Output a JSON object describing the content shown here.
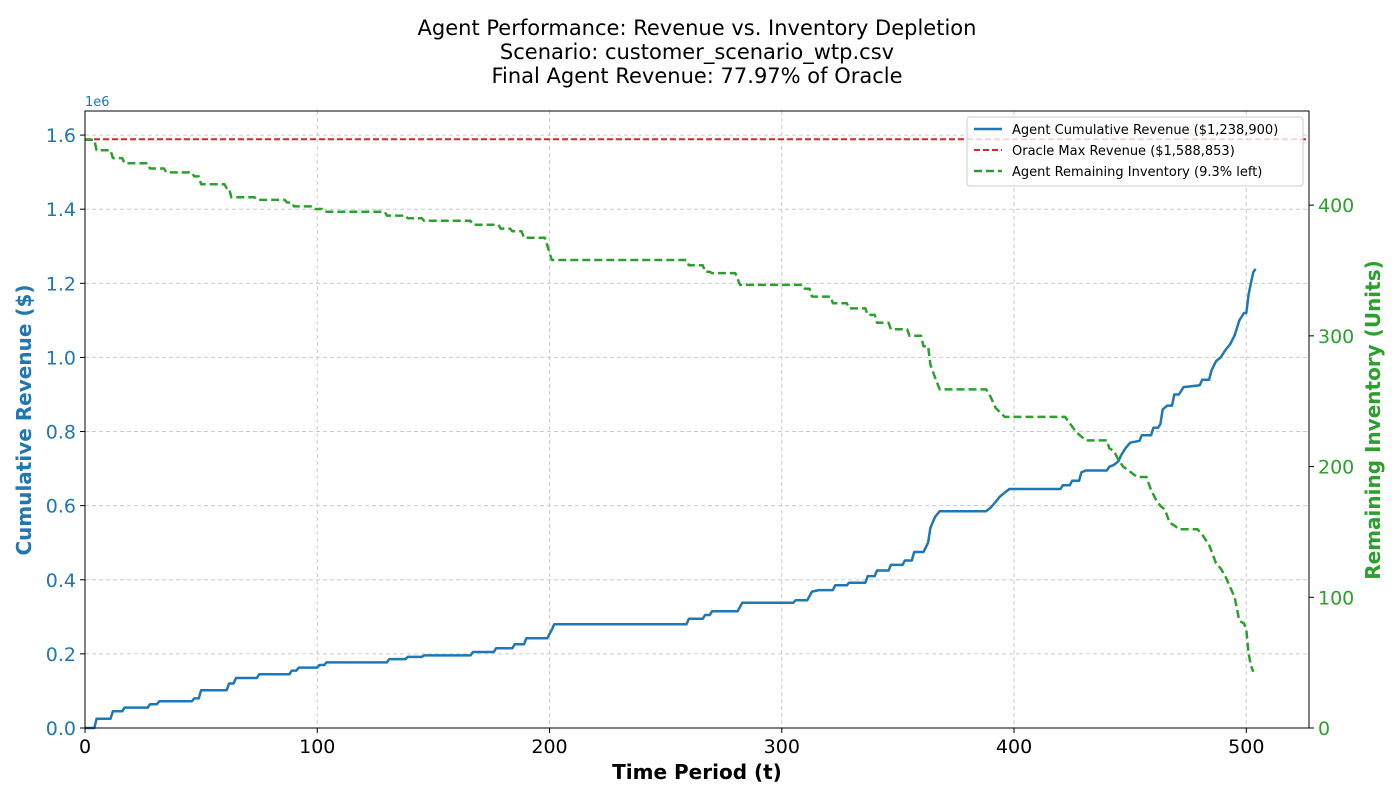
{
  "chart_data": {
    "type": "line",
    "title_lines": [
      "Agent Performance: Revenue vs. Inventory Depletion",
      "Scenario: customer_scenario_wtp.csv",
      "Final Agent Revenue: 77.97% of Oracle"
    ],
    "xlabel": "Time Period (t)",
    "ylabel_left": "Cumulative Revenue ($)",
    "ylabel_right": "Remaining Inventory (Units)",
    "left_axis_multiplier": "1e6",
    "xlim": [
      0,
      527
    ],
    "ylim_left": [
      0,
      1.665
    ],
    "ylim_right": [
      0,
      472
    ],
    "x_ticks": [
      0,
      100,
      200,
      300,
      400,
      500
    ],
    "y_left_ticks": [
      "0.0",
      "0.2",
      "0.4",
      "0.6",
      "0.8",
      "1.0",
      "1.2",
      "1.4",
      "1.6"
    ],
    "y_right_ticks": [
      "0",
      "100",
      "200",
      "300",
      "400"
    ],
    "grid": true,
    "legend_position": "upper right",
    "colors": {
      "revenue": "#1f77b4",
      "oracle": "#d62728",
      "inventory": "#2ca02c",
      "grid": "#cccccc"
    },
    "series": [
      {
        "name": "Agent Cumulative Revenue ($1,238,900)",
        "axis": "left",
        "style": "solid",
        "color": "#1f77b4",
        "points": [
          [
            0,
            0
          ],
          [
            4,
            0
          ],
          [
            5,
            0.025
          ],
          [
            11,
            0.025
          ],
          [
            12,
            0.045
          ],
          [
            16,
            0.045
          ],
          [
            17,
            0.055
          ],
          [
            27,
            0.055
          ],
          [
            28,
            0.064
          ],
          [
            31,
            0.064
          ],
          [
            32,
            0.072
          ],
          [
            46,
            0.072
          ],
          [
            47,
            0.08
          ],
          [
            49,
            0.08
          ],
          [
            50,
            0.102
          ],
          [
            61,
            0.102
          ],
          [
            62,
            0.12
          ],
          [
            64,
            0.12
          ],
          [
            65,
            0.135
          ],
          [
            74,
            0.135
          ],
          [
            75,
            0.145
          ],
          [
            88,
            0.145
          ],
          [
            89,
            0.155
          ],
          [
            91,
            0.155
          ],
          [
            92,
            0.163
          ],
          [
            100,
            0.163
          ],
          [
            101,
            0.17
          ],
          [
            103,
            0.17
          ],
          [
            104,
            0.177
          ],
          [
            130,
            0.177
          ],
          [
            131,
            0.186
          ],
          [
            138,
            0.186
          ],
          [
            139,
            0.192
          ],
          [
            145,
            0.192
          ],
          [
            146,
            0.196
          ],
          [
            166,
            0.196
          ],
          [
            167,
            0.205
          ],
          [
            176,
            0.205
          ],
          [
            177,
            0.215
          ],
          [
            184,
            0.215
          ],
          [
            185,
            0.226
          ],
          [
            189,
            0.226
          ],
          [
            190,
            0.242
          ],
          [
            199,
            0.242
          ],
          [
            201,
            0.265
          ],
          [
            202,
            0.28
          ],
          [
            259,
            0.28
          ],
          [
            260,
            0.295
          ],
          [
            266,
            0.295
          ],
          [
            267,
            0.305
          ],
          [
            269,
            0.305
          ],
          [
            270,
            0.315
          ],
          [
            281,
            0.315
          ],
          [
            283,
            0.338
          ],
          [
            305,
            0.338
          ],
          [
            306,
            0.345
          ],
          [
            311,
            0.345
          ],
          [
            313,
            0.368
          ],
          [
            316,
            0.372
          ],
          [
            322,
            0.372
          ],
          [
            323,
            0.385
          ],
          [
            328,
            0.385
          ],
          [
            329,
            0.392
          ],
          [
            336,
            0.392
          ],
          [
            337,
            0.41
          ],
          [
            340,
            0.41
          ],
          [
            341,
            0.425
          ],
          [
            346,
            0.425
          ],
          [
            347,
            0.44
          ],
          [
            352,
            0.44
          ],
          [
            353,
            0.452
          ],
          [
            356,
            0.452
          ],
          [
            357,
            0.475
          ],
          [
            361,
            0.475
          ],
          [
            363,
            0.5
          ],
          [
            364,
            0.54
          ],
          [
            366,
            0.57
          ],
          [
            368,
            0.585
          ],
          [
            388,
            0.585
          ],
          [
            390,
            0.595
          ],
          [
            392,
            0.61
          ],
          [
            394,
            0.625
          ],
          [
            396,
            0.635
          ],
          [
            398,
            0.645
          ],
          [
            420,
            0.645
          ],
          [
            421,
            0.655
          ],
          [
            424,
            0.655
          ],
          [
            425,
            0.667
          ],
          [
            428,
            0.667
          ],
          [
            429,
            0.69
          ],
          [
            431,
            0.695
          ],
          [
            440,
            0.695
          ],
          [
            441,
            0.705
          ],
          [
            443,
            0.71
          ],
          [
            445,
            0.72
          ],
          [
            446,
            0.735
          ],
          [
            448,
            0.755
          ],
          [
            450,
            0.77
          ],
          [
            454,
            0.775
          ],
          [
            455,
            0.79
          ],
          [
            459,
            0.79
          ],
          [
            460,
            0.81
          ],
          [
            462,
            0.81
          ],
          [
            463,
            0.82
          ],
          [
            464,
            0.86
          ],
          [
            466,
            0.87
          ],
          [
            468,
            0.87
          ],
          [
            469,
            0.9
          ],
          [
            471,
            0.9
          ],
          [
            473,
            0.92
          ],
          [
            480,
            0.925
          ],
          [
            481,
            0.94
          ],
          [
            484,
            0.94
          ],
          [
            485,
            0.965
          ],
          [
            487,
            0.99
          ],
          [
            489,
            1.0
          ],
          [
            491,
            1.02
          ],
          [
            493,
            1.035
          ],
          [
            495,
            1.06
          ],
          [
            497,
            1.1
          ],
          [
            499,
            1.12
          ],
          [
            500,
            1.12
          ],
          [
            501,
            1.17
          ],
          [
            502,
            1.2
          ],
          [
            503,
            1.23
          ],
          [
            504,
            1.239
          ]
        ]
      },
      {
        "name": "Oracle Max Revenue ($1,588,853)",
        "axis": "left",
        "style": "dashed",
        "color": "#d62728",
        "points": [
          [
            0,
            1.5889
          ],
          [
            527,
            1.5889
          ]
        ]
      },
      {
        "name": "Agent Remaining Inventory (9.3% left)",
        "axis": "right",
        "style": "dashed",
        "color": "#2ca02c",
        "points": [
          [
            0,
            450
          ],
          [
            4,
            450
          ],
          [
            5,
            442
          ],
          [
            11,
            442
          ],
          [
            12,
            436
          ],
          [
            16,
            436
          ],
          [
            17,
            432
          ],
          [
            27,
            432
          ],
          [
            28,
            428
          ],
          [
            34,
            428
          ],
          [
            35,
            425
          ],
          [
            46,
            425
          ],
          [
            47,
            422
          ],
          [
            49,
            422
          ],
          [
            50,
            416
          ],
          [
            60,
            416
          ],
          [
            61,
            413
          ],
          [
            62,
            413
          ],
          [
            63,
            406
          ],
          [
            73,
            406
          ],
          [
            74,
            404
          ],
          [
            86,
            404
          ],
          [
            87,
            402
          ],
          [
            89,
            402
          ],
          [
            90,
            399
          ],
          [
            98,
            399
          ],
          [
            99,
            397
          ],
          [
            102,
            397
          ],
          [
            103,
            395
          ],
          [
            129,
            395
          ],
          [
            130,
            392
          ],
          [
            138,
            392
          ],
          [
            139,
            390
          ],
          [
            145,
            390
          ],
          [
            146,
            388
          ],
          [
            166,
            388
          ],
          [
            167,
            385
          ],
          [
            178,
            385
          ],
          [
            179,
            382
          ],
          [
            183,
            382
          ],
          [
            184,
            380
          ],
          [
            188,
            380
          ],
          [
            189,
            375
          ],
          [
            198,
            375
          ],
          [
            201,
            358
          ],
          [
            259,
            358
          ],
          [
            260,
            354
          ],
          [
            266,
            354
          ],
          [
            267,
            349
          ],
          [
            269,
            349
          ],
          [
            270,
            348
          ],
          [
            280,
            348
          ],
          [
            282,
            339
          ],
          [
            309,
            339
          ],
          [
            310,
            336
          ],
          [
            312,
            336
          ],
          [
            313,
            330
          ],
          [
            321,
            330
          ],
          [
            322,
            325
          ],
          [
            328,
            325
          ],
          [
            329,
            321
          ],
          [
            336,
            321
          ],
          [
            337,
            316
          ],
          [
            340,
            316
          ],
          [
            341,
            310
          ],
          [
            346,
            310
          ],
          [
            347,
            305
          ],
          [
            354,
            305
          ],
          [
            355,
            300
          ],
          [
            360,
            300
          ],
          [
            361,
            292
          ],
          [
            363,
            292
          ],
          [
            364,
            278
          ],
          [
            366,
            268
          ],
          [
            368,
            259
          ],
          [
            388,
            259
          ],
          [
            390,
            253
          ],
          [
            392,
            245
          ],
          [
            396,
            238
          ],
          [
            422,
            238
          ],
          [
            424,
            233
          ],
          [
            427,
            226
          ],
          [
            431,
            220
          ],
          [
            440,
            220
          ],
          [
            441,
            214
          ],
          [
            443,
            212
          ],
          [
            445,
            205
          ],
          [
            447,
            200
          ],
          [
            450,
            196
          ],
          [
            453,
            192
          ],
          [
            457,
            192
          ],
          [
            459,
            182
          ],
          [
            461,
            175
          ],
          [
            463,
            170
          ],
          [
            465,
            167
          ],
          [
            467,
            157
          ],
          [
            469,
            155
          ],
          [
            471,
            152
          ],
          [
            479,
            152
          ],
          [
            481,
            148
          ],
          [
            484,
            140
          ],
          [
            487,
            126
          ],
          [
            489,
            122
          ],
          [
            491,
            116
          ],
          [
            493,
            108
          ],
          [
            495,
            100
          ],
          [
            497,
            82
          ],
          [
            499,
            80
          ],
          [
            500,
            75
          ],
          [
            501,
            57
          ],
          [
            502,
            48
          ],
          [
            503,
            43
          ]
        ]
      }
    ]
  }
}
